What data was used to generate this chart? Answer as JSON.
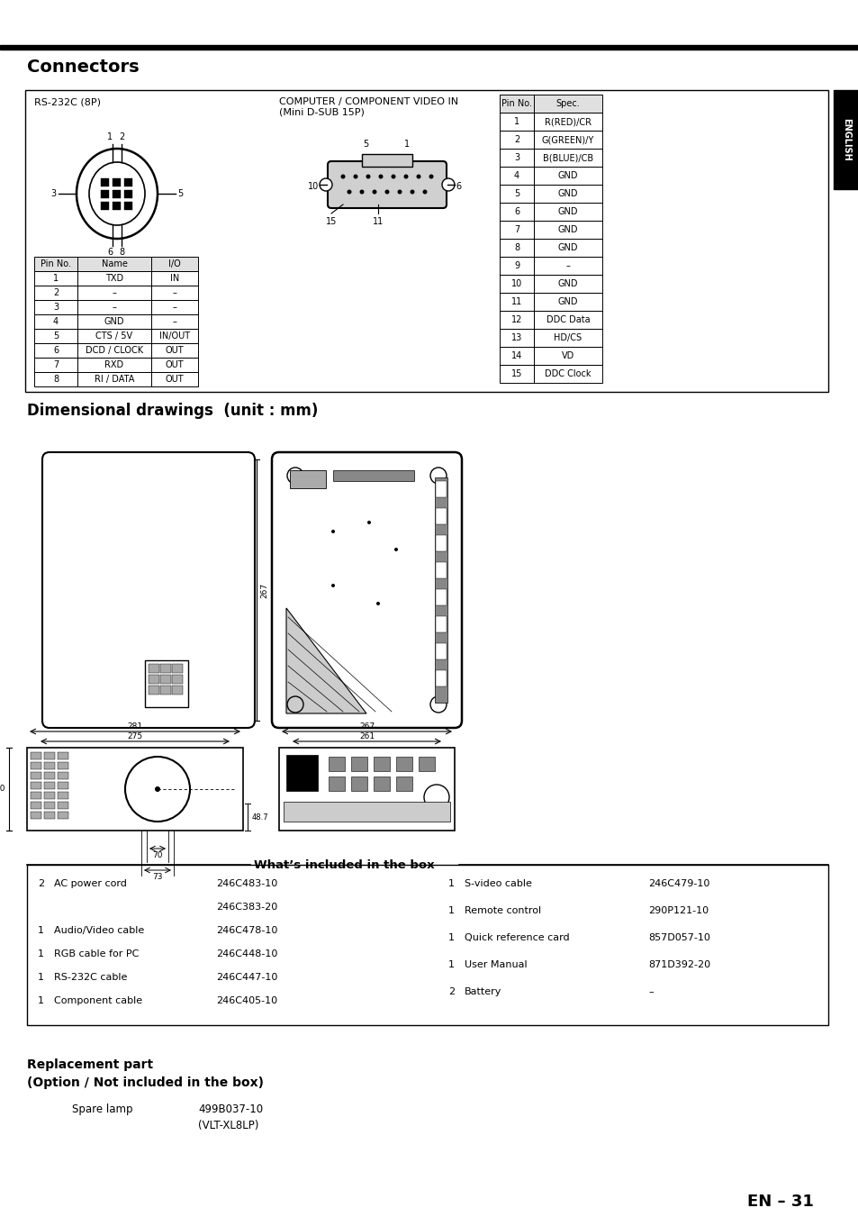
{
  "page_title": "Connectors",
  "section2_title": "Dimensional drawings  (unit : mm)",
  "section3_title": "What’s included in the box",
  "section4_title": "Replacement part\n(Option / Not included in the box)",
  "bg_color": "#ffffff",
  "page_number": "EN – 31",
  "rs232_title": "RS-232C (8P)",
  "computer_title": "COMPUTER / COMPONENT VIDEO IN\n(Mini D-SUB 15P)",
  "rs232_table": {
    "headers": [
      "Pin No.",
      "Name",
      "I/O"
    ],
    "rows": [
      [
        "1",
        "TXD",
        "IN"
      ],
      [
        "2",
        "–",
        "–"
      ],
      [
        "3",
        "–",
        "–"
      ],
      [
        "4",
        "GND",
        "–"
      ],
      [
        "5",
        "CTS / 5V",
        "IN/OUT"
      ],
      [
        "6",
        "DCD / CLOCK",
        "OUT"
      ],
      [
        "7",
        "RXD",
        "OUT"
      ],
      [
        "8",
        "RI / DATA",
        "OUT"
      ]
    ]
  },
  "computer_table": {
    "headers": [
      "Pin No.",
      "Spec."
    ],
    "rows": [
      [
        "1",
        "R(RED)/CR"
      ],
      [
        "2",
        "G(GREEN)/Y"
      ],
      [
        "3",
        "B(BLUE)/CB"
      ],
      [
        "4",
        "GND"
      ],
      [
        "5",
        "GND"
      ],
      [
        "6",
        "GND"
      ],
      [
        "7",
        "GND"
      ],
      [
        "8",
        "GND"
      ],
      [
        "9",
        "–"
      ],
      [
        "10",
        "GND"
      ],
      [
        "11",
        "GND"
      ],
      [
        "12",
        "DDC Data"
      ],
      [
        "13",
        "HD/CS"
      ],
      [
        "14",
        "VD"
      ],
      [
        "15",
        "DDC Clock"
      ]
    ]
  },
  "box_items_left": [
    {
      "qty": "2",
      "item": "AC power cord",
      "code": "246C483-10"
    },
    {
      "qty": "",
      "item": "",
      "code": "246C383-20"
    },
    {
      "qty": "1",
      "item": "Audio/Video cable",
      "code": "246C478-10"
    },
    {
      "qty": "1",
      "item": "RGB cable for PC",
      "code": "246C448-10"
    },
    {
      "qty": "1",
      "item": "RS-232C cable",
      "code": "246C447-10"
    },
    {
      "qty": "1",
      "item": "Component cable",
      "code": "246C405-10"
    }
  ],
  "box_items_right": [
    {
      "qty": "1",
      "item": "S-video cable",
      "code": "246C479-10"
    },
    {
      "qty": "1",
      "item": "Remote control",
      "code": "290P121-10"
    },
    {
      "qty": "1",
      "item": "Quick reference card",
      "code": "857D057-10"
    },
    {
      "qty": "1",
      "item": "User Manual",
      "code": "871D392-20"
    },
    {
      "qty": "2",
      "item": "Battery",
      "code": "–"
    }
  ],
  "replacement_item": "Spare lamp",
  "replacement_code1": "499B037-10",
  "replacement_code2": "(VLT-XL8LP)",
  "english_sidebar": "ENGLISH"
}
